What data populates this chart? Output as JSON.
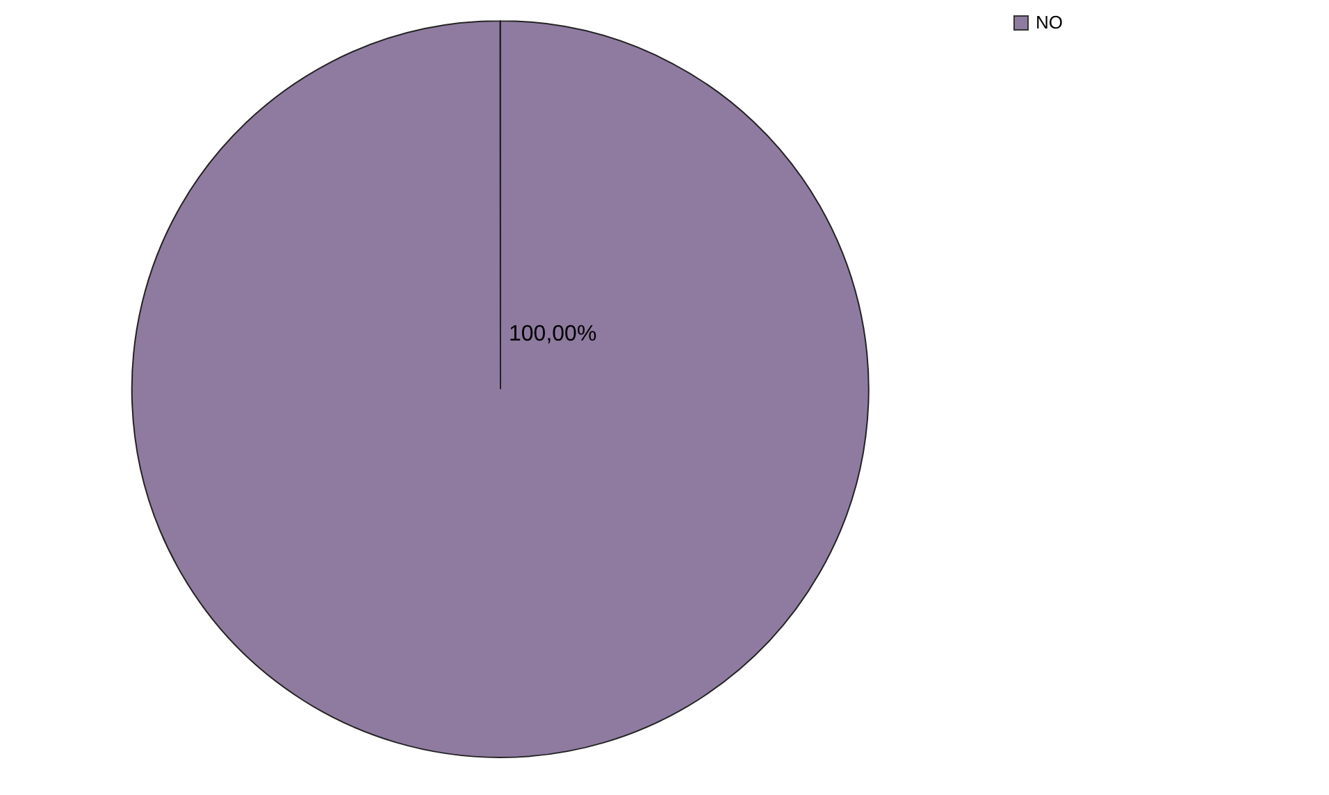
{
  "chart_data": {
    "type": "pie",
    "categories": [
      "NO"
    ],
    "values": [
      100
    ],
    "colors": [
      "#8f7ba0"
    ],
    "value_labels": [
      "100,00%"
    ],
    "legend": "top right"
  }
}
